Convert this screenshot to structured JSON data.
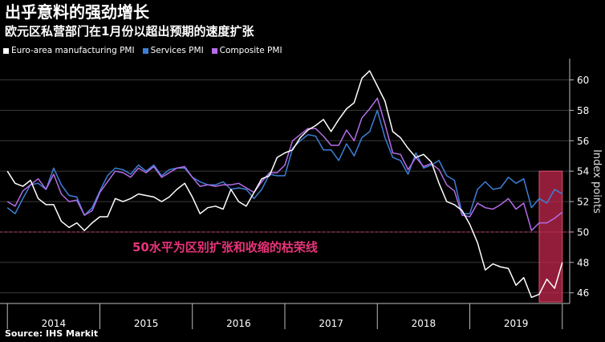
{
  "title": "出乎意料的强劲增长",
  "subtitle": "欧元区私营部门在1月份以超出预期的速度扩张",
  "source": "Source: IHS Markit",
  "colors": {
    "manufacturing": "#ffffff",
    "services": "#3d7fd6",
    "composite": "#b56ce8",
    "threshold": "#e8347a",
    "highlight": "#c2274f"
  },
  "chart_data": {
    "type": "line",
    "ylabel": "Index points",
    "ylim": [
      45.3,
      61.4
    ],
    "yticks": [
      46,
      48,
      50,
      52,
      54,
      56,
      58,
      60
    ],
    "xlim": [
      2013.92,
      2020.08
    ],
    "xtick_labels": [
      "2014",
      "2015",
      "2016",
      "2017",
      "2018",
      "2019"
    ],
    "annotation": "50水平为区别扩张和收缩的枯荣线",
    "reference_line": 50,
    "highlight_range": {
      "x": [
        2019.75,
        2020.0
      ],
      "y": [
        45.4,
        54.0
      ]
    },
    "series": [
      {
        "name": "Euro-area manufacturing PMI",
        "key": "manufacturing",
        "x": [
          2014.0,
          2014.083,
          2014.167,
          2014.25,
          2014.333,
          2014.417,
          2014.5,
          2014.583,
          2014.667,
          2014.75,
          2014.833,
          2014.917,
          2015.0,
          2015.083,
          2015.167,
          2015.25,
          2015.333,
          2015.417,
          2015.5,
          2015.583,
          2015.667,
          2015.75,
          2015.833,
          2015.917,
          2016.0,
          2016.083,
          2016.167,
          2016.25,
          2016.333,
          2016.417,
          2016.5,
          2016.583,
          2016.667,
          2016.75,
          2016.833,
          2016.917,
          2017.0,
          2017.083,
          2017.167,
          2017.25,
          2017.333,
          2017.417,
          2017.5,
          2017.583,
          2017.667,
          2017.75,
          2017.833,
          2017.917,
          2018.0,
          2018.083,
          2018.167,
          2018.25,
          2018.333,
          2018.417,
          2018.5,
          2018.583,
          2018.667,
          2018.75,
          2018.833,
          2018.917,
          2019.0,
          2019.083,
          2019.167,
          2019.25,
          2019.333,
          2019.417,
          2019.5,
          2019.583,
          2019.667,
          2019.75,
          2019.833,
          2019.917,
          2020.0
        ],
        "values": [
          54.0,
          53.2,
          53.0,
          53.4,
          52.2,
          51.8,
          51.8,
          50.7,
          50.3,
          50.6,
          50.1,
          50.6,
          51.0,
          51.0,
          52.2,
          52.0,
          52.2,
          52.5,
          52.4,
          52.3,
          52.0,
          52.3,
          52.8,
          53.2,
          52.3,
          51.2,
          51.6,
          51.7,
          51.5,
          52.8,
          52.0,
          51.7,
          52.6,
          53.5,
          53.7,
          54.9,
          55.2,
          55.4,
          56.2,
          56.7,
          57.0,
          57.4,
          56.6,
          57.4,
          58.1,
          58.5,
          60.1,
          60.6,
          59.6,
          58.6,
          56.6,
          56.2,
          55.5,
          54.9,
          55.1,
          54.6,
          53.2,
          52.0,
          51.8,
          51.4,
          50.5,
          49.3,
          47.5,
          47.9,
          47.7,
          47.6,
          46.5,
          47.0,
          45.7,
          45.9,
          46.9,
          46.3,
          48.0
        ]
      },
      {
        "name": "Services PMI",
        "key": "services",
        "x": [
          2014.0,
          2014.083,
          2014.167,
          2014.25,
          2014.333,
          2014.417,
          2014.5,
          2014.583,
          2014.667,
          2014.75,
          2014.833,
          2014.917,
          2015.0,
          2015.083,
          2015.167,
          2015.25,
          2015.333,
          2015.417,
          2015.5,
          2015.583,
          2015.667,
          2015.75,
          2015.833,
          2015.917,
          2016.0,
          2016.083,
          2016.167,
          2016.25,
          2016.333,
          2016.417,
          2016.5,
          2016.583,
          2016.667,
          2016.75,
          2016.833,
          2016.917,
          2017.0,
          2017.083,
          2017.167,
          2017.25,
          2017.333,
          2017.417,
          2017.5,
          2017.583,
          2017.667,
          2017.75,
          2017.833,
          2017.917,
          2018.0,
          2018.083,
          2018.167,
          2018.25,
          2018.333,
          2018.417,
          2018.5,
          2018.583,
          2018.667,
          2018.75,
          2018.833,
          2018.917,
          2019.0,
          2019.083,
          2019.167,
          2019.25,
          2019.333,
          2019.417,
          2019.5,
          2019.583,
          2019.667,
          2019.75,
          2019.833,
          2019.917,
          2020.0
        ],
        "values": [
          51.6,
          51.2,
          52.2,
          53.1,
          53.2,
          52.8,
          54.2,
          53.1,
          52.4,
          52.3,
          51.1,
          51.6,
          52.7,
          53.7,
          54.2,
          54.1,
          53.8,
          54.4,
          54.0,
          54.4,
          53.7,
          54.1,
          54.2,
          54.2,
          53.6,
          53.3,
          53.1,
          53.1,
          53.3,
          52.8,
          52.9,
          52.8,
          52.2,
          52.8,
          53.8,
          53.7,
          53.7,
          55.5,
          56.0,
          56.4,
          56.3,
          55.4,
          55.4,
          54.7,
          55.8,
          55.0,
          56.2,
          56.6,
          58.0,
          56.2,
          54.9,
          54.7,
          53.8,
          55.2,
          54.2,
          54.4,
          54.7,
          53.7,
          53.4,
          51.2,
          51.2,
          52.8,
          53.3,
          52.8,
          52.9,
          53.6,
          53.2,
          53.5,
          51.6,
          52.2,
          51.9,
          52.8,
          52.5
        ]
      },
      {
        "name": "Composite PMI",
        "key": "composite",
        "x": [
          2014.0,
          2014.083,
          2014.167,
          2014.25,
          2014.333,
          2014.417,
          2014.5,
          2014.583,
          2014.667,
          2014.75,
          2014.833,
          2014.917,
          2015.0,
          2015.083,
          2015.167,
          2015.25,
          2015.333,
          2015.417,
          2015.5,
          2015.583,
          2015.667,
          2015.75,
          2015.833,
          2015.917,
          2016.0,
          2016.083,
          2016.167,
          2016.25,
          2016.333,
          2016.417,
          2016.5,
          2016.583,
          2016.667,
          2016.75,
          2016.833,
          2016.917,
          2017.0,
          2017.083,
          2017.167,
          2017.25,
          2017.333,
          2017.417,
          2017.5,
          2017.583,
          2017.667,
          2017.75,
          2017.833,
          2017.917,
          2018.0,
          2018.083,
          2018.167,
          2018.25,
          2018.333,
          2018.417,
          2018.5,
          2018.583,
          2018.667,
          2018.75,
          2018.833,
          2018.917,
          2019.0,
          2019.083,
          2019.167,
          2019.25,
          2019.333,
          2019.417,
          2019.5,
          2019.583,
          2019.667,
          2019.75,
          2019.833,
          2019.917,
          2020.0
        ],
        "values": [
          52.0,
          51.7,
          52.7,
          53.1,
          53.5,
          52.8,
          53.8,
          52.5,
          52.0,
          52.1,
          51.1,
          51.4,
          52.6,
          53.3,
          54.0,
          53.9,
          53.6,
          54.2,
          53.9,
          54.3,
          53.6,
          53.9,
          54.2,
          54.3,
          53.6,
          53.0,
          53.1,
          53.0,
          53.1,
          53.1,
          53.2,
          52.9,
          52.6,
          53.3,
          53.9,
          53.9,
          54.4,
          56.0,
          56.4,
          56.8,
          56.8,
          56.3,
          55.7,
          55.7,
          56.7,
          56.0,
          57.5,
          58.1,
          58.8,
          57.1,
          55.2,
          55.1,
          54.1,
          54.9,
          54.3,
          54.5,
          54.1,
          53.1,
          52.7,
          51.1,
          51.0,
          51.9,
          51.6,
          51.5,
          51.8,
          52.2,
          51.5,
          51.9,
          50.1,
          50.6,
          50.6,
          50.9,
          51.3
        ]
      }
    ]
  }
}
